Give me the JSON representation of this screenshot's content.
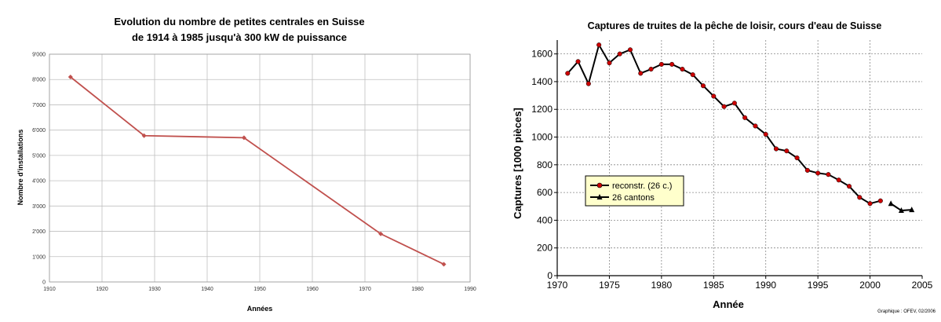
{
  "colors": {
    "left_line": "#c0504d",
    "left_grid": "#bfbfbf",
    "right_line": "#000000",
    "right_marker": "#cc0000",
    "legend_bg": "#ffffcc"
  },
  "chart_data": [
    {
      "type": "line",
      "title_line1": "Evolution du nombre de petites centrales en Suisse",
      "title_line2": "de 1914 à 1985 jusqu'à 300 kW de puissance",
      "xlabel": "Années",
      "ylabel": "Nombre d'installations",
      "xlim": [
        1910,
        1990
      ],
      "ylim": [
        0,
        9000
      ],
      "x_ticks": [
        1910,
        1920,
        1930,
        1940,
        1950,
        1960,
        1970,
        1980,
        1990
      ],
      "y_ticks": [
        0,
        1000,
        2000,
        3000,
        4000,
        5000,
        6000,
        7000,
        8000,
        9000
      ],
      "y_tick_labels": [
        "0",
        "1'000",
        "2'000",
        "3'000",
        "4'000",
        "5'000",
        "6'000",
        "7'000",
        "8'000",
        "9'000"
      ],
      "grid": true,
      "series": [
        {
          "x": [
            1914,
            1928,
            1947,
            1973,
            1985
          ],
          "y": [
            8100,
            5780,
            5700,
            1900,
            700
          ]
        }
      ]
    },
    {
      "type": "line",
      "title": "Captures de truites de la pêche de loisir, cours d'eau de Suisse",
      "xlabel": "Année",
      "ylabel": "Captures [1000 pièces]",
      "xlim": [
        1970,
        2005
      ],
      "ylim": [
        0,
        1700
      ],
      "x_ticks": [
        1970,
        1975,
        1980,
        1985,
        1990,
        1995,
        2000,
        2005
      ],
      "y_ticks": [
        0,
        200,
        400,
        600,
        800,
        1000,
        1200,
        1400,
        1600
      ],
      "grid": true,
      "legend_position": "left-middle",
      "credit": "Graphique : OFEV, 02/2006",
      "series": [
        {
          "name": "reconstr. (26 c.)",
          "x": [
            1971,
            1972,
            1973,
            1974,
            1975,
            1976,
            1977,
            1978,
            1979,
            1980,
            1981,
            1982,
            1983,
            1984,
            1985,
            1986,
            1987,
            1988,
            1989,
            1990,
            1991,
            1992,
            1993,
            1994,
            1995,
            1996,
            1997,
            1998,
            1999,
            2000,
            2001
          ],
          "y": [
            1460,
            1545,
            1385,
            1665,
            1535,
            1600,
            1630,
            1460,
            1490,
            1525,
            1525,
            1490,
            1450,
            1370,
            1295,
            1220,
            1245,
            1140,
            1080,
            1020,
            915,
            900,
            850,
            760,
            740,
            730,
            690,
            645,
            565,
            520,
            540
          ]
        },
        {
          "name": "26 cantons",
          "x": [
            2002,
            2003,
            2004
          ],
          "y": [
            520,
            470,
            475
          ]
        }
      ]
    }
  ]
}
